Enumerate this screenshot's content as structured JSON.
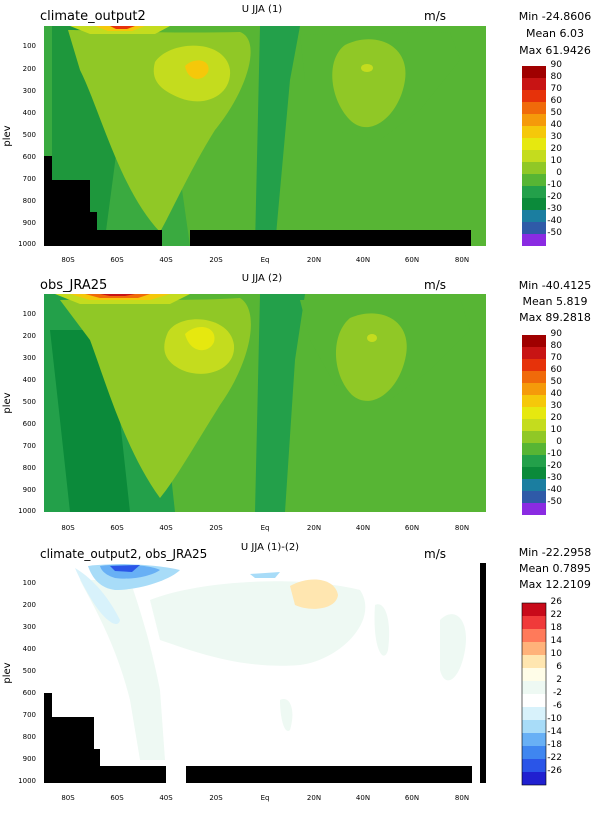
{
  "colors": {
    "cmap_main": [
      "#a0e6ff",
      "#7fc9f5",
      "#2f5aa8",
      "#1b7ea0",
      "#0f8a6f",
      "#0b8a3a",
      "#23a04a",
      "#57b534",
      "#90c826",
      "#c4dc1e",
      "#e6e80f",
      "#f5c80a",
      "#f59a0a",
      "#f06a0a",
      "#e6320a",
      "#c81414",
      "#a00000"
    ],
    "cmap_diff": [
      "#2020d0",
      "#2a55e8",
      "#3f86f0",
      "#68b0f5",
      "#a8dcf8",
      "#d8f2fb",
      "#eef9f3",
      "#ffffff",
      "#fffde8",
      "#ffe6b0",
      "#ffb27a",
      "#ff7a5a",
      "#f03a3a",
      "#c80a1a"
    ]
  },
  "chart_data": [
    {
      "type": "contour",
      "title_left": "climate_output2",
      "title_center": "U JJA (1)",
      "units": "m/s",
      "stats": [
        "Min -24.8606",
        "Mean 6.03",
        "Max 61.9426"
      ],
      "ylabel": "plev",
      "y_ticks": [
        "100",
        "200",
        "300",
        "400",
        "500",
        "600",
        "700",
        "800",
        "900",
        "1000"
      ],
      "x_ticks": [
        "80S",
        "60S",
        "40S",
        "20S",
        "Eq",
        "20N",
        "40N",
        "60N",
        "80N"
      ],
      "colorbar_labels": [
        "90",
        "80",
        "70",
        "60",
        "50",
        "40",
        "30",
        "20",
        "10",
        "0",
        "-10",
        "-20",
        "-30",
        "-40",
        "-50"
      ],
      "colormap": "main",
      "masked_terrain": true
    },
    {
      "type": "contour",
      "title_left": "obs_JRA25",
      "title_center": "U JJA (2)",
      "units": "m/s",
      "stats": [
        "Min -40.4125",
        "Mean 5.819",
        "Max 89.2818"
      ],
      "ylabel": "plev",
      "y_ticks": [
        "100",
        "200",
        "300",
        "400",
        "500",
        "600",
        "700",
        "800",
        "900",
        "1000"
      ],
      "x_ticks": [
        "80S",
        "60S",
        "40S",
        "20S",
        "Eq",
        "20N",
        "40N",
        "60N",
        "80N"
      ],
      "colorbar_labels": [
        "90",
        "80",
        "70",
        "60",
        "50",
        "40",
        "30",
        "20",
        "10",
        "0",
        "-10",
        "-20",
        "-30",
        "-40",
        "-50"
      ],
      "colormap": "main",
      "masked_terrain": false
    },
    {
      "type": "contour",
      "title_left": "climate_output2, obs_JRA25",
      "title_center": "U JJA (1)-(2)",
      "units": "m/s",
      "stats": [
        "Min -22.2958",
        "Mean 0.7895",
        "Max 12.2109"
      ],
      "ylabel": "plev",
      "y_ticks": [
        "100",
        "200",
        "300",
        "400",
        "500",
        "600",
        "700",
        "800",
        "900",
        "1000"
      ],
      "x_ticks": [
        "80S",
        "60S",
        "40S",
        "20S",
        "Eq",
        "20N",
        "40N",
        "60N",
        "80N"
      ],
      "colorbar_labels": [
        "26",
        "22",
        "18",
        "14",
        "10",
        "6",
        "2",
        "-2",
        "-6",
        "-10",
        "-14",
        "-18",
        "-22",
        "-26"
      ],
      "colormap": "diff",
      "masked_terrain": true
    }
  ]
}
